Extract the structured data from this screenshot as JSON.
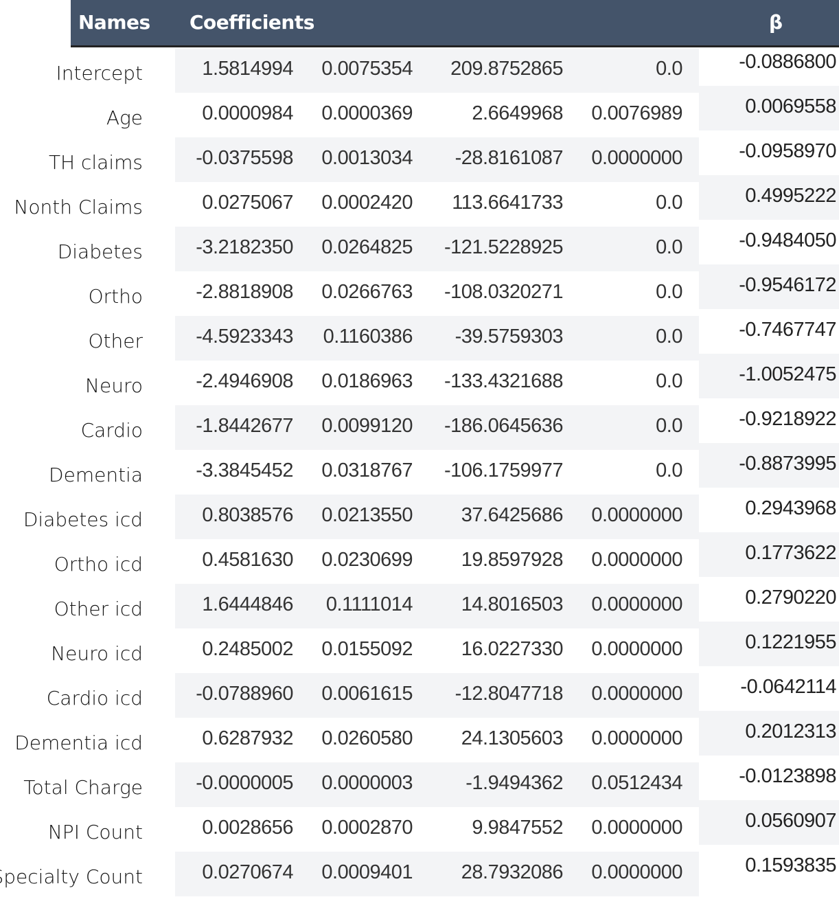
{
  "header": {
    "names": "Names",
    "coefficients": "Coefficients",
    "beta": "β"
  },
  "rows": [
    {
      "name": "Intercept",
      "v": [
        "1.5814994",
        "0.0075354",
        "209.8752865",
        "0.0"
      ],
      "beta": "-0.0886800"
    },
    {
      "name": "Age",
      "v": [
        "0.0000984",
        "0.0000369",
        "2.6649968",
        "0.0076989"
      ],
      "beta": "0.0069558"
    },
    {
      "name": "TH claims",
      "v": [
        "-0.0375598",
        "0.0013034",
        "-28.8161087",
        "0.0000000"
      ],
      "beta": "-0.0958970"
    },
    {
      "name": "Nonth Claims",
      "v": [
        "0.0275067",
        "0.0002420",
        "113.6641733",
        "0.0"
      ],
      "beta": "0.4995222"
    },
    {
      "name": "Diabetes",
      "v": [
        "-3.2182350",
        "0.0264825",
        "-121.5228925",
        "0.0"
      ],
      "beta": "-0.9484050"
    },
    {
      "name": "Ortho",
      "v": [
        "-2.8818908",
        "0.0266763",
        "-108.0320271",
        "0.0"
      ],
      "beta": "-0.9546172"
    },
    {
      "name": "Other",
      "v": [
        "-4.5923343",
        "0.1160386",
        "-39.5759303",
        "0.0"
      ],
      "beta": "-0.7467747"
    },
    {
      "name": "Neuro",
      "v": [
        "-2.4946908",
        "0.0186963",
        "-133.4321688",
        "0.0"
      ],
      "beta": "-1.0052475"
    },
    {
      "name": "Cardio",
      "v": [
        "-1.8442677",
        "0.0099120",
        "-186.0645636",
        "0.0"
      ],
      "beta": "-0.9218922"
    },
    {
      "name": "Dementia",
      "v": [
        "-3.3845452",
        "0.0318767",
        "-106.1759977",
        "0.0"
      ],
      "beta": "-0.8873995"
    },
    {
      "name": "Diabetes icd",
      "v": [
        "0.8038576",
        "0.0213550",
        "37.6425686",
        "0.0000000"
      ],
      "beta": "0.2943968"
    },
    {
      "name": "Ortho icd",
      "v": [
        "0.4581630",
        "0.0230699",
        "19.8597928",
        "0.0000000"
      ],
      "beta": "0.1773622"
    },
    {
      "name": "Other icd",
      "v": [
        "1.6444846",
        "0.1111014",
        "14.8016503",
        "0.0000000"
      ],
      "beta": "0.2790220"
    },
    {
      "name": "Neuro icd",
      "v": [
        "0.2485002",
        "0.0155092",
        "16.0227330",
        "0.0000000"
      ],
      "beta": "0.1221955"
    },
    {
      "name": "Cardio icd",
      "v": [
        "-0.0788960",
        "0.0061615",
        "-12.8047718",
        "0.0000000"
      ],
      "beta": "-0.0642114"
    },
    {
      "name": "Dementia icd",
      "v": [
        "0.6287932",
        "0.0260580",
        "24.1305603",
        "0.0000000"
      ],
      "beta": "0.2012313"
    },
    {
      "name": "Total Charge",
      "v": [
        "-0.0000005",
        "0.0000003",
        "-1.9494362",
        "0.0512434"
      ],
      "beta": "-0.0123898"
    },
    {
      "name": "NPI Count",
      "v": [
        "0.0028656",
        "0.0002870",
        "9.9847552",
        "0.0000000"
      ],
      "beta": "0.0560907"
    },
    {
      "name": "Specialty Count",
      "v": [
        "0.0270674",
        "0.0009401",
        "28.7932086",
        "0.0000000"
      ],
      "beta": "0.1593835"
    }
  ]
}
